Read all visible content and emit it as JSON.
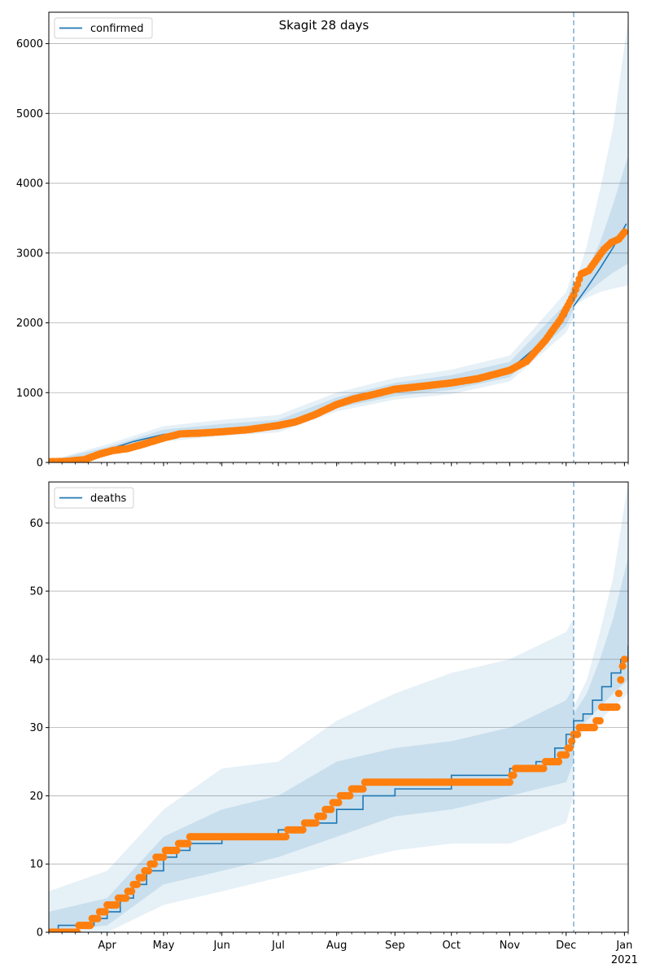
{
  "chart_data": [
    {
      "type": "line",
      "title": "Skagit 28 days",
      "xlabel": "",
      "ylabel": "",
      "ylim": [
        0,
        6450
      ],
      "yticks": [
        0,
        1000,
        2000,
        3000,
        4000,
        5000,
        6000
      ],
      "ytick_labels": [
        "0",
        "1000",
        "2000",
        "3000",
        "4000",
        "5000",
        "6000"
      ],
      "grid": "horizontal",
      "legend": {
        "position": "top-left",
        "entries": [
          "confirmed"
        ]
      },
      "forecast_start": "2020-12-05",
      "colors": {
        "model": "#1f77b4",
        "observed": "#ff7f0e",
        "band": "#1f77b4",
        "forecast_line": "#1f77b4"
      },
      "series": [
        {
          "name": "confirmed",
          "kind": "model",
          "x": [
            "2020-03-01",
            "2020-03-15",
            "2020-03-25",
            "2020-04-01",
            "2020-04-15",
            "2020-05-01",
            "2020-05-15",
            "2020-06-01",
            "2020-06-15",
            "2020-07-01",
            "2020-07-15",
            "2020-08-01",
            "2020-08-15",
            "2020-09-01",
            "2020-09-15",
            "2020-10-01",
            "2020-10-15",
            "2020-11-01",
            "2020-11-15",
            "2020-12-01",
            "2020-12-05"
          ],
          "y": [
            10,
            30,
            80,
            180,
            300,
            400,
            440,
            460,
            480,
            520,
            650,
            850,
            950,
            1030,
            1080,
            1130,
            1200,
            1330,
            1650,
            2100,
            2400
          ]
        },
        {
          "name": "forecast",
          "kind": "model",
          "x": [
            "2020-12-05",
            "2020-12-12",
            "2020-12-19",
            "2020-12-26",
            "2021-01-02"
          ],
          "y": [
            2240,
            2500,
            2780,
            3080,
            3420
          ]
        },
        {
          "name": "observed",
          "kind": "observed",
          "x": [
            "2020-03-01",
            "2020-03-10",
            "2020-03-20",
            "2020-03-28",
            "2020-04-04",
            "2020-04-12",
            "2020-04-20",
            "2020-05-01",
            "2020-05-10",
            "2020-05-20",
            "2020-06-01",
            "2020-06-15",
            "2020-07-01",
            "2020-07-10",
            "2020-07-20",
            "2020-08-01",
            "2020-08-10",
            "2020-08-20",
            "2020-09-01",
            "2020-09-15",
            "2020-10-01",
            "2020-10-15",
            "2020-11-01",
            "2020-11-10",
            "2020-11-20",
            "2020-11-28",
            "2020-12-05",
            "2020-12-09",
            "2020-12-13",
            "2020-12-17",
            "2020-12-21",
            "2020-12-25",
            "2020-12-29",
            "2021-01-01"
          ],
          "y": [
            10,
            15,
            40,
            120,
            170,
            200,
            260,
            350,
            410,
            420,
            440,
            470,
            530,
            580,
            680,
            830,
            910,
            970,
            1050,
            1090,
            1140,
            1200,
            1320,
            1450,
            1750,
            2050,
            2400,
            2700,
            2750,
            2900,
            3050,
            3150,
            3200,
            3300
          ]
        }
      ],
      "bands": [
        {
          "x": [
            "2020-03-01",
            "2020-04-01",
            "2020-05-01",
            "2020-06-01",
            "2020-07-01",
            "2020-08-01",
            "2020-09-01",
            "2020-10-01",
            "2020-11-01",
            "2020-12-01",
            "2020-12-05"
          ],
          "outer_low": [
            0,
            130,
            300,
            380,
            430,
            730,
            900,
            980,
            1160,
            1860,
            2080
          ],
          "outer_high": [
            25,
            260,
            520,
            610,
            680,
            1000,
            1210,
            1330,
            1530,
            2440,
            2760
          ],
          "inner_low": [
            0,
            150,
            340,
            410,
            470,
            780,
            950,
            1040,
            1220,
            1960,
            2200
          ],
          "inner_high": [
            20,
            220,
            470,
            550,
            610,
            930,
            1140,
            1250,
            1440,
            2280,
            2620
          ]
        },
        {
          "x": [
            "2020-12-05",
            "2020-12-12",
            "2020-12-19",
            "2020-12-26",
            "2021-01-03"
          ],
          "outer_low": [
            2240,
            2360,
            2440,
            2490,
            2540
          ],
          "outer_high": [
            2500,
            3100,
            3900,
            4800,
            6350
          ],
          "inner_low": [
            2240,
            2420,
            2580,
            2720,
            2850
          ],
          "inner_high": [
            2400,
            2750,
            3150,
            3700,
            4400
          ]
        }
      ]
    },
    {
      "type": "line",
      "title": "",
      "xlabel": "",
      "ylabel": "",
      "ylim": [
        0,
        66
      ],
      "yticks": [
        0,
        10,
        20,
        30,
        40,
        50,
        60
      ],
      "ytick_labels": [
        "0",
        "10",
        "20",
        "30",
        "40",
        "50",
        "60"
      ],
      "grid": "horizontal",
      "legend": {
        "position": "top-left",
        "entries": [
          "deaths"
        ]
      },
      "forecast_start": "2020-12-05",
      "xticks": [
        "2020-04-01",
        "2020-05-01",
        "2020-06-01",
        "2020-07-01",
        "2020-08-01",
        "2020-09-01",
        "2020-10-01",
        "2020-11-01",
        "2020-12-01",
        "2021-01-01"
      ],
      "xtick_labels": [
        "Apr",
        "May",
        "Jun",
        "Jul",
        "Aug",
        "Sep",
        "Oct",
        "Nov",
        "Dec",
        "Jan"
      ],
      "xtick_sublabel": "2021",
      "series": [
        {
          "name": "deaths",
          "kind": "model-step",
          "x": [
            "2020-03-01",
            "2020-03-06",
            "2020-03-25",
            "2020-04-01",
            "2020-04-08",
            "2020-04-15",
            "2020-04-22",
            "2020-05-01",
            "2020-05-08",
            "2020-05-15",
            "2020-06-01",
            "2020-06-15",
            "2020-07-01",
            "2020-07-15",
            "2020-08-01",
            "2020-08-15",
            "2020-09-01",
            "2020-10-01",
            "2020-11-01",
            "2020-11-15",
            "2020-11-25",
            "2020-12-01",
            "2020-12-05",
            "2020-12-10",
            "2020-12-15",
            "2020-12-20",
            "2020-12-25",
            "2020-12-30",
            "2021-01-03"
          ],
          "y": [
            0,
            1,
            2,
            3,
            5,
            7,
            9,
            11,
            12,
            13,
            14,
            14,
            15,
            16,
            18,
            20,
            21,
            23,
            24,
            25,
            27,
            29,
            31,
            32,
            34,
            36,
            38,
            40,
            42
          ]
        },
        {
          "name": "observed",
          "kind": "observed",
          "x": [
            "2020-03-01",
            "2020-03-12",
            "2020-03-22",
            "2020-03-29",
            "2020-04-03",
            "2020-04-10",
            "2020-04-16",
            "2020-04-22",
            "2020-04-28",
            "2020-05-05",
            "2020-05-12",
            "2020-05-18",
            "2020-06-01",
            "2020-06-15",
            "2020-07-01",
            "2020-07-10",
            "2020-07-20",
            "2020-07-28",
            "2020-08-05",
            "2020-08-12",
            "2020-08-20",
            "2020-09-01",
            "2020-09-15",
            "2020-10-01",
            "2020-10-15",
            "2020-11-01",
            "2020-11-05",
            "2020-11-15",
            "2020-11-25",
            "2020-12-01",
            "2020-12-04",
            "2020-12-06",
            "2020-12-10",
            "2020-12-15",
            "2020-12-19",
            "2020-12-20",
            "2020-12-25",
            "2020-12-28",
            "2020-12-30",
            "2021-01-01"
          ],
          "y": [
            0,
            0,
            1,
            3,
            4,
            5,
            7,
            9,
            11,
            12,
            13,
            14,
            14,
            14,
            14,
            15,
            16,
            18,
            20,
            21,
            22,
            22,
            22,
            22,
            22,
            22,
            24,
            24,
            25,
            26,
            28,
            29,
            30,
            30,
            31,
            33,
            33,
            33,
            37,
            40
          ]
        }
      ],
      "bands": [
        {
          "x": [
            "2020-03-01",
            "2020-04-01",
            "2020-05-01",
            "2020-06-01",
            "2020-07-01",
            "2020-08-01",
            "2020-09-01",
            "2020-10-01",
            "2020-11-01",
            "2020-12-01",
            "2020-12-05"
          ],
          "outer_low": [
            0,
            0,
            4,
            6,
            8,
            10,
            12,
            13,
            13,
            16,
            20
          ],
          "outer_high": [
            6,
            9,
            18,
            24,
            25,
            31,
            35,
            38,
            40,
            44,
            46
          ],
          "inner_low": [
            0,
            1,
            7,
            9,
            11,
            14,
            17,
            18,
            20,
            22,
            25
          ],
          "inner_high": [
            3,
            5,
            14,
            18,
            20,
            25,
            27,
            28,
            30,
            34,
            36
          ]
        },
        {
          "x": [
            "2020-12-05",
            "2020-12-12",
            "2020-12-19",
            "2020-12-26",
            "2021-01-03"
          ],
          "outer_low": [
            28,
            30,
            31,
            33,
            35
          ],
          "outer_high": [
            33,
            37,
            44,
            52,
            66
          ],
          "inner_low": [
            29,
            31,
            33,
            35,
            37
          ],
          "inner_high": [
            32,
            35,
            40,
            46,
            55
          ]
        }
      ]
    }
  ]
}
